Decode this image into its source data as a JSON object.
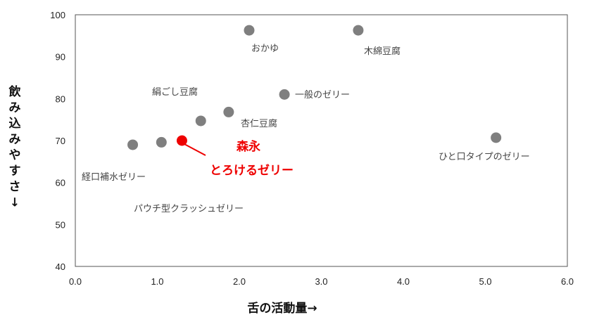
{
  "chart_data": {
    "type": "scatter",
    "xlabel": "舌の活動量→",
    "ylabel": "飲み込みやすさ↓",
    "xlim": [
      0,
      6
    ],
    "ylim": [
      40,
      100
    ],
    "xticks": [
      "0.0",
      "1.0",
      "2.0",
      "3.0",
      "4.0",
      "5.0",
      "6.0"
    ],
    "yticks": [
      "40",
      "50",
      "60",
      "70",
      "80",
      "90",
      "100"
    ],
    "grid": false,
    "point_color": "#7f7f7f",
    "highlight_color": "#ee0000",
    "points": [
      {
        "x": 0.7,
        "y": 69.0,
        "highlight": false
      },
      {
        "x": 1.05,
        "y": 69.6,
        "highlight": false
      },
      {
        "x": 1.3,
        "y": 70.0,
        "highlight": true
      },
      {
        "x": 1.53,
        "y": 74.7,
        "highlight": false
      },
      {
        "x": 1.87,
        "y": 76.8,
        "highlight": false
      },
      {
        "x": 2.12,
        "y": 96.3,
        "highlight": false
      },
      {
        "x": 2.55,
        "y": 81.0,
        "highlight": false
      },
      {
        "x": 3.45,
        "y": 96.3,
        "highlight": false
      },
      {
        "x": 5.13,
        "y": 70.7,
        "highlight": false
      }
    ],
    "annotations": [
      {
        "text": "おかゆ"
      },
      {
        "text": "木綿豆腐"
      },
      {
        "text": "絹ごし豆腐"
      },
      {
        "text": "一般のゼリー"
      },
      {
        "text": "杏仁豆腐"
      },
      {
        "text": "ひと口タイプのゼリー"
      },
      {
        "text": "経口補水ゼリー"
      },
      {
        "text": "パウチ型クラッシュゼリー"
      },
      {
        "text": "森永"
      },
      {
        "text": "とろけるゼリー"
      }
    ]
  }
}
